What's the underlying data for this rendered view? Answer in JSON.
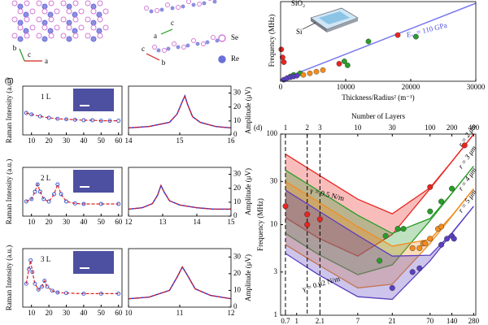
{
  "panel_a": {
    "axis_labels": [
      "b",
      "c",
      "a",
      "c",
      "a",
      "c",
      "b"
    ],
    "legend": [
      {
        "name": "Se",
        "color": "#d37ad6"
      },
      {
        "name": "Re",
        "color": "#6b6fd8"
      }
    ]
  },
  "chart_data": [
    {
      "type": "scatter",
      "xlabel": "Thickness/Radius² (m⁻¹)",
      "ylabel": "Frequency (MHz)",
      "xlim": [
        0,
        30000
      ],
      "ylim": [
        0,
        50
      ],
      "xticks": [
        0,
        10000,
        20000,
        30000
      ],
      "fit": {
        "color": "#7b7bf0",
        "x": [
          0,
          30000
        ],
        "values": [
          1,
          49
        ]
      },
      "series": [
        {
          "color": "#e8251f",
          "x": [
            100,
            300,
            500,
            9000,
            18000
          ],
          "values": [
            20,
            15,
            12,
            11,
            29
          ]
        },
        {
          "color": "#2a9d2a",
          "x": [
            1500,
            2000,
            3000,
            9800,
            10300,
            13500,
            20800
          ],
          "values": [
            3,
            4,
            5,
            12.5,
            10,
            25,
            28
          ]
        },
        {
          "color": "#f28c1e",
          "x": [
            3500,
            4500,
            5500,
            6500
          ],
          "values": [
            4,
            5,
            6,
            7
          ]
        },
        {
          "color": "#5a3fc0",
          "x": [
            500,
            1000,
            1500,
            2000,
            2500
          ],
          "values": [
            1,
            2,
            2.5,
            3,
            3.5
          ]
        }
      ],
      "modulus": {
        "symbol": "E",
        "sub": "Y",
        "rest": " = 110 GPa"
      },
      "inset_labels": [
        "SiO₂",
        "Si"
      ]
    },
    {
      "type": "band",
      "panel_label": "(d)",
      "ylabel": "Frequency (MHz)",
      "x2label": "Number of Layers",
      "xlog": true,
      "ylog": true,
      "xlim": [
        0.6,
        300
      ],
      "ylim": [
        1,
        100
      ],
      "xticks": [
        0.7,
        1,
        2.1,
        7,
        21,
        70,
        140,
        280
      ],
      "yticks": [
        1,
        3,
        10,
        30,
        100
      ],
      "x2lim": [
        0.857,
        428.6
      ],
      "x2ticks": [
        1,
        2,
        3,
        10,
        30,
        100,
        200,
        400
      ],
      "band_x": [
        0.7,
        2,
        7,
        21,
        70,
        140,
        280
      ],
      "series": [
        {
          "name": "r = 2 μm",
          "color": "#e8251f",
          "upper": [
            60.0,
            35.5,
            19.1,
            13.2,
            25.6,
            49.9,
            99.4
          ],
          "lower": [
            12.0,
            7.1,
            4.5,
            7.8,
            24.9,
            49.7,
            99.4
          ],
          "points_x": [
            0.7,
            1.4,
            1.4,
            2.1,
            70,
            210
          ],
          "points_y": [
            16,
            13,
            10,
            11.5,
            26,
            75
          ]
        },
        {
          "name": "r = 3 μm",
          "color": "#2a9d2a",
          "upper": [
            40.0,
            23.7,
            12.7,
            8.0,
            11.7,
            22.3,
            44.2
          ],
          "lower": [
            8.0,
            4.7,
            2.8,
            3.6,
            11.1,
            22.1,
            44.2
          ],
          "points_x": [
            14,
            17,
            25,
            30,
            70,
            100,
            140
          ],
          "points_y": [
            4,
            7.5,
            9,
            9,
            14,
            18,
            25
          ]
        },
        {
          "name": "r = 4 μm",
          "color": "#f28c1e",
          "upper": [
            30.0,
            17.8,
            9.5,
            5.8,
            6.9,
            12.6,
            24.9
          ],
          "lower": [
            6.0,
            3.6,
            2.0,
            2.2,
            6.2,
            12.4,
            24.9
          ],
          "points_x": [
            40,
            50,
            56,
            60,
            70,
            90,
            100
          ],
          "points_y": [
            5.5,
            5.5,
            6.2,
            6.2,
            7,
            9,
            9.5
          ]
        },
        {
          "name": "r = 5 μm",
          "color": "#5a3fc0",
          "upper": [
            24.0,
            14.2,
            7.6,
            4.5,
            4.6,
            8.1,
            15.9
          ],
          "lower": [
            4.8,
            2.8,
            1.6,
            1.5,
            4.0,
            8.0,
            15.9
          ],
          "points_x": [
            21,
            40,
            50,
            100,
            120,
            140,
            150
          ],
          "points_y": [
            2,
            3,
            3.3,
            6,
            7,
            7.5,
            7
          ]
        }
      ],
      "annotations": [
        "γ = 0.5 N/m",
        "γ = 0.02 N/m"
      ]
    },
    {
      "type": "raman",
      "panel_label": "(b)",
      "sample_label": "1 L",
      "ylabel": "Raman Intensity (a.u.)",
      "color": "#3050d0",
      "fit_color": "#e02020",
      "xlim": [
        5,
        62
      ],
      "xticks": [
        10,
        20,
        30,
        40,
        50,
        60
      ],
      "ylim": [
        0,
        10
      ],
      "x": [
        7,
        10,
        15,
        20,
        25,
        30,
        35,
        40,
        45,
        50,
        55,
        60
      ],
      "values": [
        4.5,
        4.2,
        3.8,
        3.5,
        3.3,
        3.2,
        3.1,
        3.0,
        3.0,
        2.9,
        2.9,
        2.9
      ]
    },
    {
      "type": "resonance",
      "ylabel": "Amplitude (μV)",
      "color": "#1a2fe0",
      "fit_color": "#e02020",
      "xlim": [
        14,
        16
      ],
      "xticks": [
        14,
        15,
        16
      ],
      "ylim": [
        0,
        35
      ],
      "yticks": [
        0,
        10,
        20,
        30
      ],
      "x": [
        14,
        14.4,
        14.8,
        14.95,
        15.05,
        15.1,
        15.15,
        15.25,
        15.4,
        15.7,
        16
      ],
      "values": [
        5,
        6,
        9,
        15,
        24,
        28,
        22,
        13,
        9,
        6,
        5
      ]
    },
    {
      "type": "raman",
      "sample_label": "2 L",
      "ylabel": "Raman Intensity (a.u.)",
      "color": "#3050d0",
      "fit_color": "#e02020",
      "xlim": [
        5,
        62
      ],
      "xticks": [
        10,
        20,
        30,
        40,
        50,
        60
      ],
      "ylim": [
        0,
        10
      ],
      "x": [
        7,
        10,
        12,
        13.5,
        15,
        17,
        20,
        23,
        25,
        27,
        30,
        35,
        40,
        50,
        60
      ],
      "values": [
        3,
        3.5,
        5,
        6.5,
        5,
        3.5,
        3,
        4.5,
        6.5,
        4.5,
        3,
        2.6,
        2.5,
        2.5,
        2.5
      ]
    },
    {
      "type": "resonance",
      "ylabel": "Amplitude (μV)",
      "color": "#1a2fe0",
      "fit_color": "#e02020",
      "xlim": [
        12,
        15
      ],
      "xticks": [
        12,
        13,
        14,
        15
      ],
      "ylim": [
        0,
        35
      ],
      "yticks": [
        0,
        10,
        20,
        30
      ],
      "x": [
        12,
        12.4,
        12.7,
        12.85,
        12.95,
        13.05,
        13.2,
        13.5,
        14,
        14.5,
        15
      ],
      "values": [
        5,
        6,
        9,
        15,
        22,
        17,
        11,
        8,
        6,
        5,
        5
      ]
    },
    {
      "type": "raman",
      "sample_label": "3 L",
      "ylabel": "Raman Intensity (a.u.)",
      "color": "#3050d0",
      "fit_color": "#e02020",
      "xlim": [
        5,
        62
      ],
      "xticks": [
        10,
        20,
        30,
        40,
        50,
        60
      ],
      "ylim": [
        0,
        10
      ],
      "x": [
        7,
        8.5,
        9.5,
        10.5,
        12,
        14,
        16,
        17.5,
        19,
        22,
        25,
        30,
        40,
        50,
        60
      ],
      "values": [
        4,
        6.5,
        8,
        6,
        4,
        3,
        3.5,
        4.5,
        3.5,
        2.8,
        2.5,
        2.4,
        2.3,
        2.3,
        2.3
      ]
    },
    {
      "type": "resonance",
      "ylabel": "Amplitude (μV)",
      "color": "#1a2fe0",
      "fit_color": "#e02020",
      "xlim": [
        10,
        12
      ],
      "xticks": [
        10,
        11,
        12
      ],
      "ylim": [
        0,
        35
      ],
      "yticks": [
        0,
        10,
        20,
        30
      ],
      "x": [
        10,
        10.4,
        10.8,
        10.95,
        11.05,
        11.15,
        11.3,
        11.6,
        12
      ],
      "values": [
        5,
        6,
        10,
        18,
        24,
        19,
        11,
        7,
        5
      ]
    }
  ]
}
